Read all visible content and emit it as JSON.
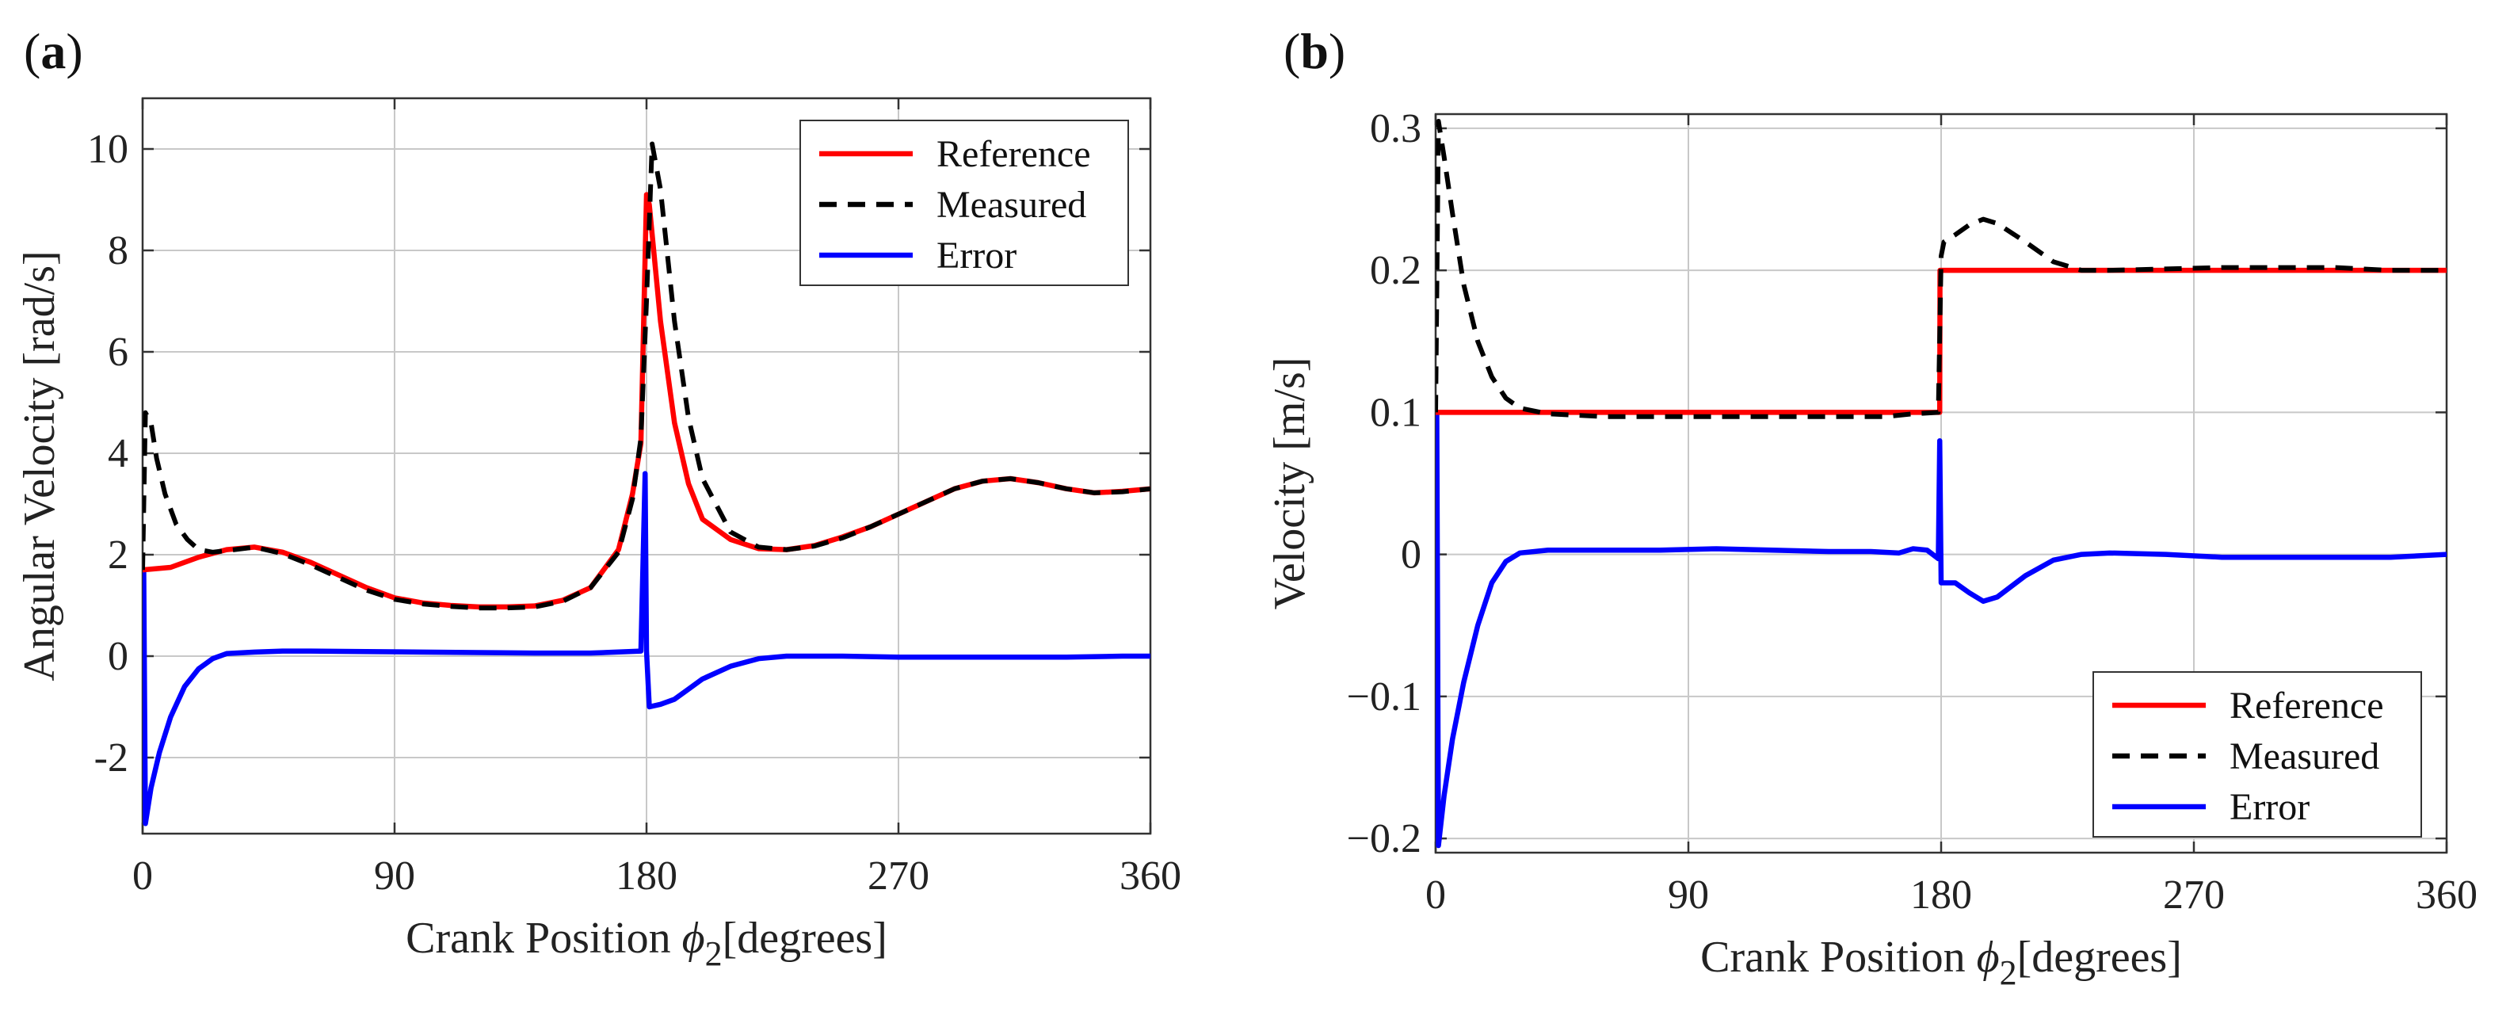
{
  "colors": {
    "reference": "#ff0000",
    "measured": "#000000",
    "error": "#0000ff",
    "grid": "#c8c8c8",
    "axis": "#333333"
  },
  "chart_data": [
    {
      "panel_label": "(a)",
      "type": "line",
      "title": "",
      "xlabel": "Crank Position",
      "xlabel_symbol": "ϕ",
      "xlabel_sub": "2",
      "xlabel_unit": "[degrees]",
      "ylabel": "Angular Velocity [rad/s]",
      "xlim": [
        0,
        360
      ],
      "ylim": [
        -3.5,
        11
      ],
      "xticks": [
        0,
        90,
        180,
        270,
        360
      ],
      "yticks": [
        -2,
        0,
        2,
        4,
        6,
        8,
        10
      ],
      "grid": true,
      "legend_position": "top-right",
      "series": [
        {
          "name": "Reference",
          "style": "solid",
          "color": "#ff0000",
          "x": [
            0,
            10,
            20,
            30,
            40,
            50,
            60,
            70,
            80,
            90,
            100,
            110,
            120,
            130,
            140,
            150,
            160,
            170,
            175,
            178,
            180,
            181,
            185,
            190,
            195,
            200,
            210,
            220,
            230,
            240,
            250,
            260,
            270,
            280,
            290,
            300,
            310,
            320,
            330,
            340,
            350,
            360
          ],
          "y": [
            1.7,
            1.75,
            1.95,
            2.1,
            2.15,
            2.05,
            1.85,
            1.6,
            1.35,
            1.15,
            1.05,
            1.0,
            0.97,
            0.97,
            0.99,
            1.1,
            1.35,
            2.1,
            3.2,
            4.2,
            9.1,
            8.9,
            6.6,
            4.6,
            3.4,
            2.7,
            2.3,
            2.12,
            2.1,
            2.18,
            2.35,
            2.55,
            2.8,
            3.05,
            3.3,
            3.45,
            3.5,
            3.42,
            3.3,
            3.22,
            3.25,
            3.3
          ]
        },
        {
          "name": "Measured",
          "style": "dashed",
          "color": "#000000",
          "x": [
            0,
            1,
            3,
            5,
            8,
            12,
            16,
            20,
            25,
            30,
            40,
            50,
            60,
            70,
            80,
            90,
            100,
            110,
            120,
            130,
            140,
            150,
            160,
            170,
            175,
            178,
            180,
            182,
            185,
            190,
            195,
            200,
            210,
            220,
            230,
            240,
            250,
            260,
            270,
            280,
            290,
            300,
            310,
            320,
            330,
            340,
            350,
            360
          ],
          "y": [
            1.7,
            4.8,
            4.6,
            3.9,
            3.2,
            2.6,
            2.3,
            2.1,
            2.05,
            2.08,
            2.15,
            2.02,
            1.8,
            1.55,
            1.3,
            1.12,
            1.03,
            0.98,
            0.95,
            0.95,
            0.97,
            1.08,
            1.35,
            2.05,
            3.1,
            4.3,
            7.0,
            10.1,
            9.2,
            6.6,
            4.7,
            3.5,
            2.45,
            2.15,
            2.1,
            2.17,
            2.33,
            2.55,
            2.8,
            3.05,
            3.3,
            3.45,
            3.5,
            3.42,
            3.3,
            3.22,
            3.24,
            3.3
          ]
        },
        {
          "name": "Error",
          "style": "solid",
          "color": "#0000ff",
          "x": [
            0,
            0.4,
            1,
            3,
            6,
            10,
            15,
            20,
            25,
            30,
            40,
            50,
            60,
            80,
            100,
            120,
            140,
            160,
            178,
            179.5,
            180,
            181,
            185,
            190,
            195,
            200,
            210,
            220,
            230,
            240,
            250,
            270,
            290,
            310,
            330,
            350,
            360
          ],
          "y": [
            0,
            1.7,
            -3.3,
            -2.6,
            -1.9,
            -1.2,
            -0.6,
            -0.25,
            -0.05,
            0.05,
            0.08,
            0.1,
            0.1,
            0.09,
            0.08,
            0.07,
            0.06,
            0.06,
            0.1,
            3.6,
            0.1,
            -1.0,
            -0.95,
            -0.85,
            -0.65,
            -0.45,
            -0.2,
            -0.05,
            0.0,
            0.0,
            0.0,
            -0.02,
            -0.02,
            -0.02,
            -0.02,
            0.0,
            0.0
          ]
        }
      ]
    },
    {
      "panel_label": "(b)",
      "type": "line",
      "title": "",
      "xlabel": "Crank Position",
      "xlabel_symbol": "ϕ",
      "xlabel_sub": "2",
      "xlabel_unit": "[degrees]",
      "ylabel": "Velocity [m/s]",
      "xlim": [
        0,
        360
      ],
      "ylim": [
        -0.21,
        0.31
      ],
      "xticks": [
        0,
        90,
        180,
        270,
        360
      ],
      "yticks": [
        -0.2,
        -0.1,
        0,
        0.1,
        0.2,
        0.3
      ],
      "ytick_labels": [
        "−0.2",
        "−0.1",
        "0",
        "0.1",
        "0.2",
        "0.3"
      ],
      "grid": true,
      "legend_position": "bottom-right",
      "series": [
        {
          "name": "Reference",
          "style": "solid",
          "color": "#ff0000",
          "x": [
            0,
            179.5,
            179.6,
            360
          ],
          "y": [
            0.1,
            0.1,
            0.2,
            0.2
          ]
        },
        {
          "name": "Measured",
          "style": "dashed",
          "color": "#000000",
          "x": [
            0,
            1,
            3,
            6,
            10,
            15,
            20,
            25,
            30,
            40,
            60,
            80,
            100,
            120,
            140,
            160,
            170,
            179,
            180,
            181,
            185,
            190,
            195,
            200,
            210,
            220,
            230,
            240,
            260,
            280,
            300,
            320,
            340,
            360
          ],
          "y": [
            0.1,
            0.305,
            0.28,
            0.24,
            0.19,
            0.15,
            0.125,
            0.11,
            0.103,
            0.099,
            0.097,
            0.097,
            0.097,
            0.097,
            0.097,
            0.097,
            0.099,
            0.1,
            0.21,
            0.22,
            0.225,
            0.232,
            0.236,
            0.233,
            0.22,
            0.206,
            0.2,
            0.2,
            0.201,
            0.202,
            0.202,
            0.202,
            0.2,
            0.2
          ]
        },
        {
          "name": "Error",
          "style": "solid",
          "color": "#0000ff",
          "x": [
            0,
            0.4,
            1,
            3,
            6,
            10,
            15,
            20,
            25,
            30,
            40,
            60,
            80,
            100,
            120,
            140,
            155,
            165,
            170,
            175,
            179,
            179.5,
            180,
            181,
            185,
            190,
            195,
            200,
            210,
            220,
            230,
            240,
            260,
            280,
            300,
            320,
            340,
            360
          ],
          "y": [
            0,
            0.1,
            -0.205,
            -0.17,
            -0.13,
            -0.09,
            -0.05,
            -0.02,
            -0.005,
            0.001,
            0.003,
            0.003,
            0.003,
            0.004,
            0.003,
            0.002,
            0.002,
            0.001,
            0.004,
            0.003,
            -0.003,
            0.08,
            -0.02,
            -0.02,
            -0.02,
            -0.027,
            -0.033,
            -0.03,
            -0.015,
            -0.004,
            0.0,
            0.001,
            0.0,
            -0.002,
            -0.002,
            -0.002,
            -0.002,
            0.0
          ]
        }
      ]
    }
  ]
}
